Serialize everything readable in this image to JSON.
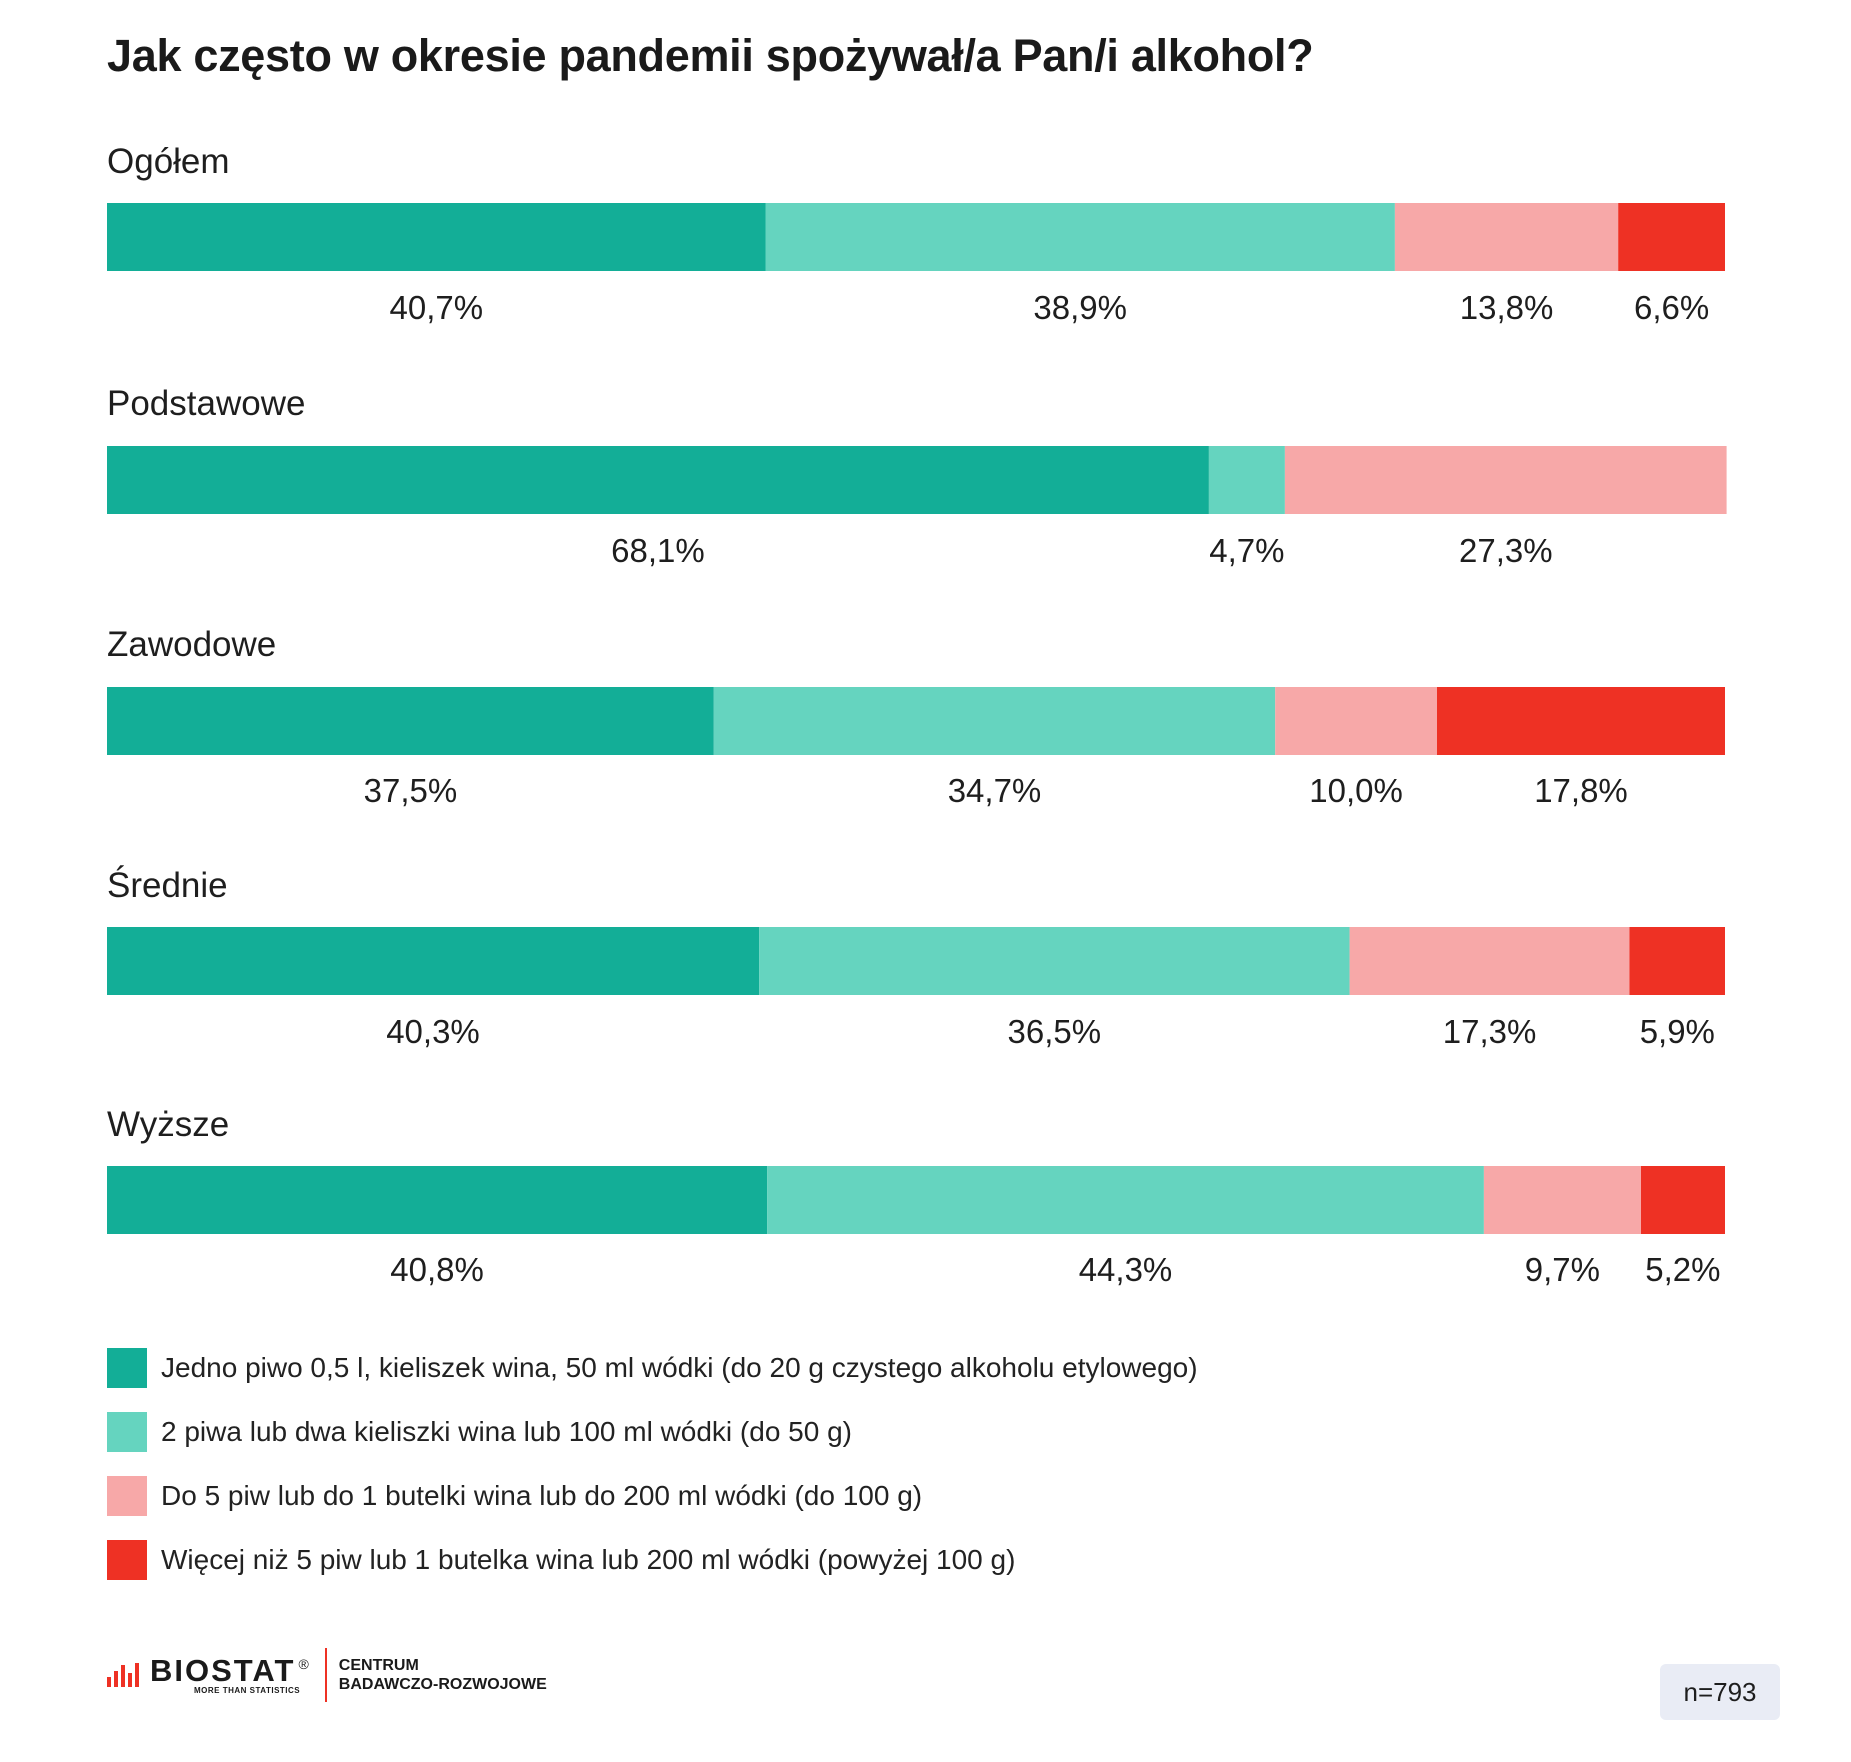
{
  "chart_data": {
    "type": "bar",
    "orientation": "horizontal",
    "stacked": true,
    "title": "Jak często w okresie pandemii spożywał/a Pan/i alkohol?",
    "groups": [
      {
        "name": "Ogółem",
        "values": [
          40.7,
          38.9,
          13.8,
          6.6
        ],
        "labels": [
          "40,7%",
          "38,9%",
          "13,8%",
          "6,6%"
        ]
      },
      {
        "name": "Podstawowe",
        "values": [
          68.1,
          4.7,
          27.3,
          0
        ],
        "labels": [
          "68,1%",
          "4,7%",
          "27,3%",
          ""
        ]
      },
      {
        "name": "Zawodowe",
        "values": [
          37.5,
          34.7,
          10.0,
          17.8
        ],
        "labels": [
          "37,5%",
          "34,7%",
          "10,0%",
          "17,8%"
        ]
      },
      {
        "name": "Średnie",
        "values": [
          40.3,
          36.5,
          17.3,
          5.9
        ],
        "labels": [
          "40,3%",
          "36,5%",
          "17,3%",
          "5,9%"
        ]
      },
      {
        "name": "Wyższe",
        "values": [
          40.8,
          44.3,
          9.7,
          5.2
        ],
        "labels": [
          "40,8%",
          "44,3%",
          "9,7%",
          "5,2%"
        ]
      }
    ],
    "series": [
      {
        "name": "Jedno piwo 0,5 l, kieliszek wina, 50 ml wódki (do 20 g czystego alkoholu etylowego)",
        "color": "#13ae97"
      },
      {
        "name": "2 piwa lub dwa kieliszki wina lub 100 ml wódki (do 50 g)",
        "color": "#65d4bf"
      },
      {
        "name": "Do 5 piw lub do 1 butelki wina lub do 200 ml wódki (do 100 g)",
        "color": "#f7a8a8"
      },
      {
        "name": "Więcej niż 5 piw lub 1 butelka wina lub 200 ml wódki (powyżej 100 g)",
        "color": "#ee3124"
      }
    ],
    "legend_position": "bottom",
    "grid": false,
    "xlim": [
      0,
      100
    ]
  },
  "footer": {
    "brand": "BIOSTAT",
    "registered": "®",
    "tagline": "MORE THAN STATISTICS",
    "center_line1": "CENTRUM",
    "center_line2": "BADAWCZO-ROZWOJOWE",
    "sample_size": "n=793"
  }
}
